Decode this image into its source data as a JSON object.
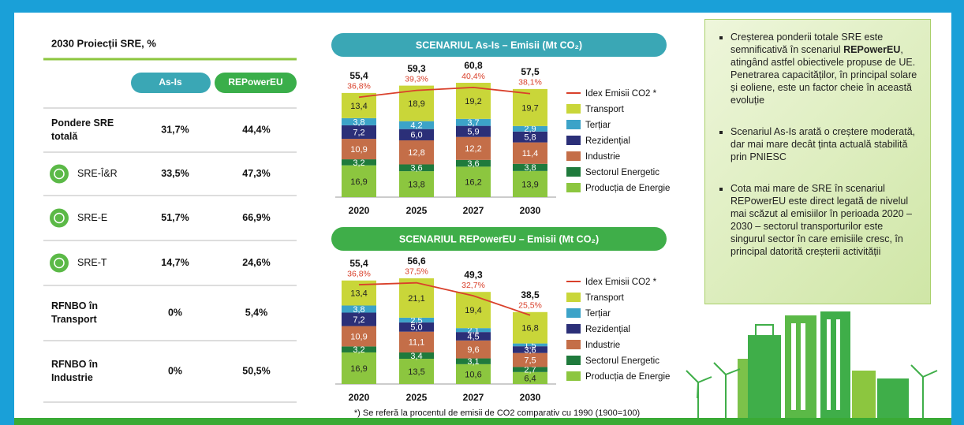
{
  "table": {
    "title": "2030 Proiecții SRE, %",
    "headers": [
      "As-Is",
      "REPowerEU"
    ],
    "rows": [
      [
        "Pondere SRE totală",
        "31,7%",
        "44,4%"
      ],
      [
        "SRE-Î&R",
        "33,5%",
        "47,3%"
      ],
      [
        "SRE-E",
        "51,7%",
        "66,9%"
      ],
      [
        "SRE-T",
        "14,7%",
        "24,6%"
      ],
      [
        "RFNBO în Transport",
        "0%",
        "5,4%"
      ],
      [
        "RFNBO în Industrie",
        "0%",
        "50,5%"
      ]
    ]
  },
  "chart_data": [
    {
      "type": "bar",
      "title": "SCENARIUL As-Is – Emisii (Mt CO₂)",
      "stacked": true,
      "categories": [
        "2020",
        "2025",
        "2027",
        "2030"
      ],
      "ylim": [
        0,
        65
      ],
      "y2lim": [
        0,
        45
      ],
      "series": [
        {
          "name": "Producția de Energie",
          "color": "#8cc63f",
          "values": [
            16.9,
            13.8,
            16.2,
            13.9
          ],
          "value_labels": [
            "16,9",
            "13,8",
            "16,2",
            "13,9"
          ]
        },
        {
          "name": "Sectorul Energetic",
          "color": "#1f7a3c",
          "values": [
            3.2,
            3.6,
            3.6,
            3.8
          ],
          "value_labels": [
            "3,2",
            "3,6",
            "3,6",
            "3,8"
          ]
        },
        {
          "name": "Industrie",
          "color": "#c46e48",
          "values": [
            10.9,
            12.8,
            12.2,
            11.4
          ],
          "value_labels": [
            "10,9",
            "12,8",
            "12,2",
            "11,4"
          ]
        },
        {
          "name": "Rezidențial",
          "color": "#2b2f78",
          "values": [
            7.2,
            6.0,
            5.9,
            5.8
          ],
          "value_labels": [
            "7,2",
            "6,0",
            "5,9",
            "5,8"
          ]
        },
        {
          "name": "Terțiar",
          "color": "#3ca3c8",
          "values": [
            3.8,
            4.2,
            3.7,
            2.9
          ],
          "value_labels": [
            "3,8",
            "4,2",
            "3,7",
            "2,9"
          ]
        },
        {
          "name": "Transport",
          "color": "#c9d639",
          "values": [
            13.4,
            18.9,
            19.2,
            19.7
          ],
          "value_labels": [
            "13,4",
            "18,9",
            "19,2",
            "19,7"
          ]
        }
      ],
      "totals": {
        "values": [
          55.4,
          59.3,
          60.8,
          57.5
        ],
        "value_labels": [
          "55,4",
          "59,3",
          "60,8",
          "57,5"
        ]
      },
      "line": {
        "name": "Idex Emisii CO2 *",
        "color": "#d9402b",
        "axis": "y2",
        "values": [
          36.8,
          39.3,
          40.4,
          38.1
        ],
        "value_labels": [
          "36,8%",
          "39,3%",
          "40,4%",
          "38,1%"
        ]
      }
    },
    {
      "type": "bar",
      "title": "SCENARIUL REPowerEU – Emisii (Mt CO₂)",
      "stacked": true,
      "categories": [
        "2020",
        "2025",
        "2027",
        "2030"
      ],
      "ylim": [
        0,
        65
      ],
      "y2lim": [
        0,
        45
      ],
      "series": [
        {
          "name": "Producția de Energie",
          "color": "#8cc63f",
          "values": [
            16.9,
            13.5,
            10.6,
            6.4
          ],
          "value_labels": [
            "16,9",
            "13,5",
            "10,6",
            "6,4"
          ]
        },
        {
          "name": "Sectorul Energetic",
          "color": "#1f7a3c",
          "values": [
            3.2,
            3.4,
            3.1,
            2.7
          ],
          "value_labels": [
            "3,2",
            "3,4",
            "3,1",
            "2,7"
          ]
        },
        {
          "name": "Industrie",
          "color": "#c46e48",
          "values": [
            10.9,
            11.1,
            9.6,
            7.5
          ],
          "value_labels": [
            "10,9",
            "11,1",
            "9,6",
            "7,5"
          ]
        },
        {
          "name": "Rezidențial",
          "color": "#2b2f78",
          "values": [
            7.2,
            5.0,
            4.5,
            3.6
          ],
          "value_labels": [
            "7,2",
            "5,0",
            "4,5",
            "3,6"
          ]
        },
        {
          "name": "Terțiar",
          "color": "#3ca3c8",
          "values": [
            3.8,
            2.5,
            2.1,
            1.5
          ],
          "value_labels": [
            "3,8",
            "2,5",
            "2,1",
            "1,5"
          ]
        },
        {
          "name": "Transport",
          "color": "#c9d639",
          "values": [
            13.4,
            21.1,
            19.4,
            16.8
          ],
          "value_labels": [
            "13,4",
            "21,1",
            "19,4",
            "16,8"
          ]
        }
      ],
      "totals": {
        "values": [
          55.4,
          56.6,
          49.3,
          38.5
        ],
        "value_labels": [
          "55,4",
          "56,6",
          "49,3",
          "38,5"
        ]
      },
      "line": {
        "name": "Idex Emisii CO2 *",
        "color": "#d9402b",
        "axis": "y2",
        "values": [
          36.8,
          37.5,
          32.7,
          25.5
        ],
        "value_labels": [
          "36,8%",
          "37,5%",
          "32,7%",
          "25,5%"
        ]
      }
    }
  ],
  "footnote": "*) Se referă la procentul de emisii de CO2 comparativ cu 1990 (1900=100)",
  "notes": [
    [
      "Creșterea ponderii totale SRE este semnificativă în scenariul ",
      "REPowerEU",
      ", atingând astfel obiectivele propuse de UE. Penetrarea capacităților, în principal solare și eoliene, este un factor cheie în această evoluție"
    ],
    [
      "Scenariul As-Is arată o creștere moderată, dar mai mare decât ținta actuală stabilită prin PNIESC"
    ],
    [
      "Cota mai mare de SRE în scenariul REPowerEU este direct legată de nivelul mai scăzut al emisiilor în perioada 2020 – 2030 – sectorul transporturilor este singurul sector în care emisiile cresc, în principal datorită creșterii activității"
    ]
  ]
}
